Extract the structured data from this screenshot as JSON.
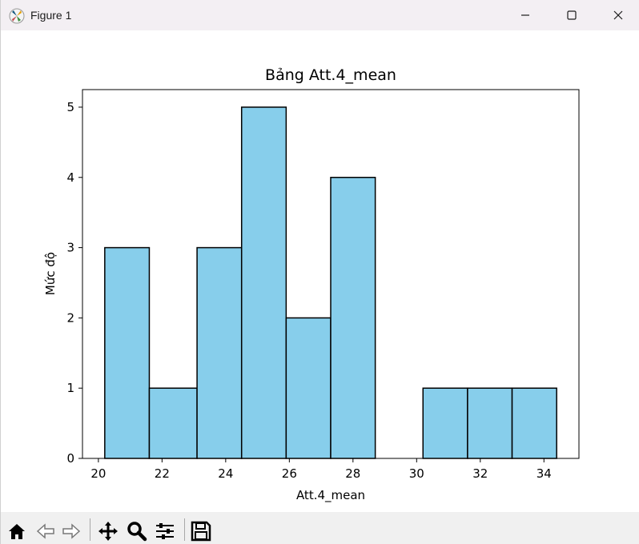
{
  "window": {
    "title": "Figure 1"
  },
  "chart_data": {
    "type": "bar",
    "title": "Bảng Att.4_mean",
    "xlabel": "Att.4_mean",
    "ylabel": "Mức độ",
    "bins": [
      {
        "x0": 20.2,
        "x1": 21.6,
        "count": 3
      },
      {
        "x0": 21.6,
        "x1": 23.1,
        "count": 1
      },
      {
        "x0": 23.1,
        "x1": 24.5,
        "count": 3
      },
      {
        "x0": 24.5,
        "x1": 25.9,
        "count": 5
      },
      {
        "x0": 25.9,
        "x1": 27.3,
        "count": 2
      },
      {
        "x0": 27.3,
        "x1": 28.7,
        "count": 4
      },
      {
        "x0": 28.7,
        "x1": 30.2,
        "count": 0
      },
      {
        "x0": 30.2,
        "x1": 31.6,
        "count": 1
      },
      {
        "x0": 31.6,
        "x1": 33.0,
        "count": 1
      },
      {
        "x0": 33.0,
        "x1": 34.4,
        "count": 1
      }
    ],
    "xticks": [
      20,
      22,
      24,
      26,
      28,
      30,
      32,
      34
    ],
    "yticks": [
      0,
      1,
      2,
      3,
      4,
      5
    ],
    "xlim": [
      19.5,
      35.1
    ],
    "ylim": [
      0,
      5.25
    ],
    "bar_color": "#87ceeb",
    "edge_color": "#000000",
    "grid": false
  },
  "toolbar": {
    "items": [
      "home-icon",
      "back-arrow-icon",
      "forward-arrow-icon",
      "pan-icon",
      "zoom-icon",
      "configure-subplots-icon",
      "save-icon"
    ]
  }
}
